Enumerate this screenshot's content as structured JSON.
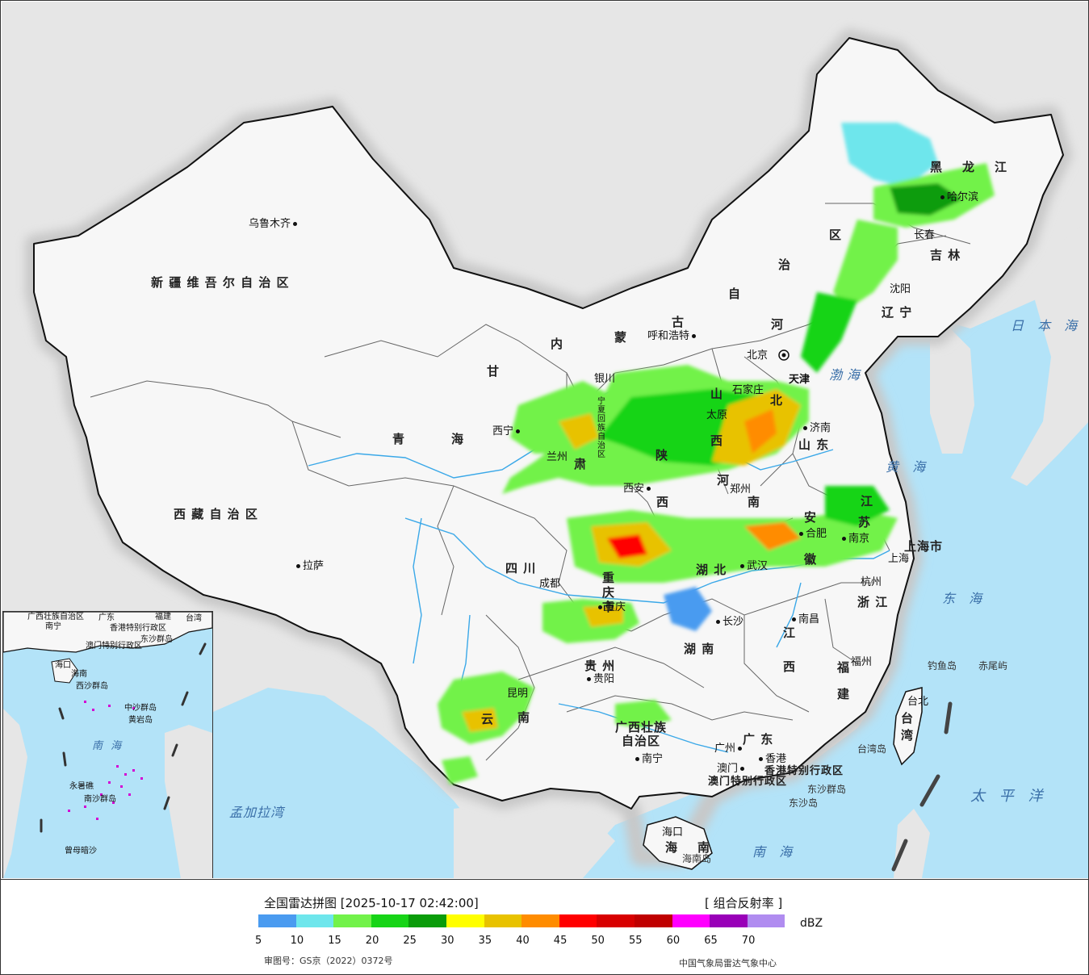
{
  "map": {
    "provinces": {
      "xinjiang": "新 疆 维 吾 尔 自 治 区",
      "xizang": "西 藏 自 治 区",
      "qinghai_1": "青",
      "qinghai_2": "海",
      "gansu_1": "甘",
      "gansu_2": "肃",
      "neimenggu_1": "内",
      "neimenggu_2": "蒙",
      "neimenggu_3": "古",
      "neimenggu_4": "自",
      "neimenggu_5": "治",
      "neimenggu_6": "区",
      "heilongjiang_1": "黑",
      "heilongjiang_2": "龙",
      "heilongjiang_3": "江",
      "jilin": "吉 林",
      "liaoning": "辽 宁",
      "hebei_1": "河",
      "hebei_2": "北",
      "shanxi_1": "山",
      "shanxi_2": "西",
      "shaanxi_1": "陕",
      "shaanxi_2": "西",
      "henan_1": "河",
      "henan_2": "南",
      "shandong": "山  东",
      "jiangsu_1": "江",
      "jiangsu_2": "苏",
      "anhui_1": "安",
      "anhui_2": "徽",
      "hubei": "湖  北",
      "sichuan": "四  川",
      "chongqing": "重 庆 市",
      "guizhou": "贵  州",
      "yunnan_1": "云",
      "yunnan_2": "南",
      "hunan": "湖  南",
      "jiangxi_1": "江",
      "jiangxi_2": "西",
      "zhejiang": "浙 江",
      "fujian_1": "福",
      "fujian_2": "建",
      "guangxi_1": "广西壮族",
      "guangxi_2": "自治区",
      "guangdong": "广  东",
      "hainan_1": "海",
      "hainan_2": "南",
      "taiwan_1": "台",
      "taiwan_2": "湾",
      "shanghai": "上海市",
      "ningxia": "宁夏回族自治区",
      "tianjin": "天津",
      "hongkong_sar": "香港特别行政区",
      "macao_sar": "澳门特别行政区"
    },
    "cities": {
      "urumqi": "乌鲁木齐",
      "lhasa": "拉萨",
      "xining": "西宁",
      "lanzhou": "兰州",
      "yinchuan": "银川",
      "hohhot": "呼和浩特",
      "beijing": "北京",
      "shijiazhuang": "石家庄",
      "taiyuan": "太原",
      "jinan": "济南",
      "zhengzhou": "郑州",
      "xian": "西安",
      "chengdu": "成都",
      "chongqing": "重庆",
      "guiyang": "贵阳",
      "kunming": "昆明",
      "nanning": "南宁",
      "guangzhou": "广州",
      "hongkong": "香港",
      "macao": "澳门",
      "haikou": "海口",
      "changsha": "长沙",
      "wuhan": "武汉",
      "hefei": "合肥",
      "nanjing": "南京",
      "shanghai": "上海",
      "hangzhou": "杭州",
      "nanchang": "南昌",
      "fuzhou": "福州",
      "taipei": "台北",
      "shenyang": "沈阳",
      "changchun": "长春",
      "harbin": "哈尔滨"
    },
    "islands": {
      "diaoyu": "钓鱼岛",
      "chiwei": "赤尾屿",
      "dongsha_qundao": "东沙群岛",
      "dongsha_dao": "东沙岛",
      "taiwan_dao": "台湾岛",
      "hainan_dao": "海南岛"
    },
    "seas": {
      "bohai": "渤海",
      "huanghai": "黄 海",
      "donghai": "东 海",
      "nanhai": "南 海",
      "japan_sea": "日 本 海",
      "pacific": "太 平 洋",
      "bengal": "孟加拉湾"
    }
  },
  "inset": {
    "labels": {
      "guangxi": "广西壮族自治区",
      "nanning": "南宁",
      "guangdong": "广东",
      "fujian": "福建",
      "taiwan": "台湾",
      "hongkong": "香港特别行政区",
      "macao": "澳门特别行政区",
      "hainan": "海南",
      "haikou": "海口",
      "dongsha": "东沙群岛",
      "xisha": "西沙群岛",
      "zhongsha": "中沙群岛",
      "huangyan": "黄岩岛",
      "nanhai": "南 海",
      "nansha": "南沙群岛",
      "yongshu": "永暑礁",
      "zengmu": "曾母暗沙"
    }
  },
  "legend": {
    "title": "全国雷达拼图 [2025-10-17 02:42:00]",
    "product": "[ 组合反射率 ]",
    "unit": "dBZ",
    "colors": [
      "#4a9bf0",
      "#6ee6ec",
      "#72f24a",
      "#17d417",
      "#0a9c0a",
      "#ffff00",
      "#e8c200",
      "#ff8c00",
      "#ff0000",
      "#d80000",
      "#c00000",
      "#ff00ff",
      "#9900b8",
      "#b08cf0"
    ],
    "ticks": [
      "5",
      "10",
      "15",
      "20",
      "25",
      "30",
      "35",
      "40",
      "45",
      "50",
      "55",
      "60",
      "65",
      "70"
    ],
    "approval": "审图号：GS京（2022）0372号",
    "agency": "中国气象局雷达气象中心"
  }
}
